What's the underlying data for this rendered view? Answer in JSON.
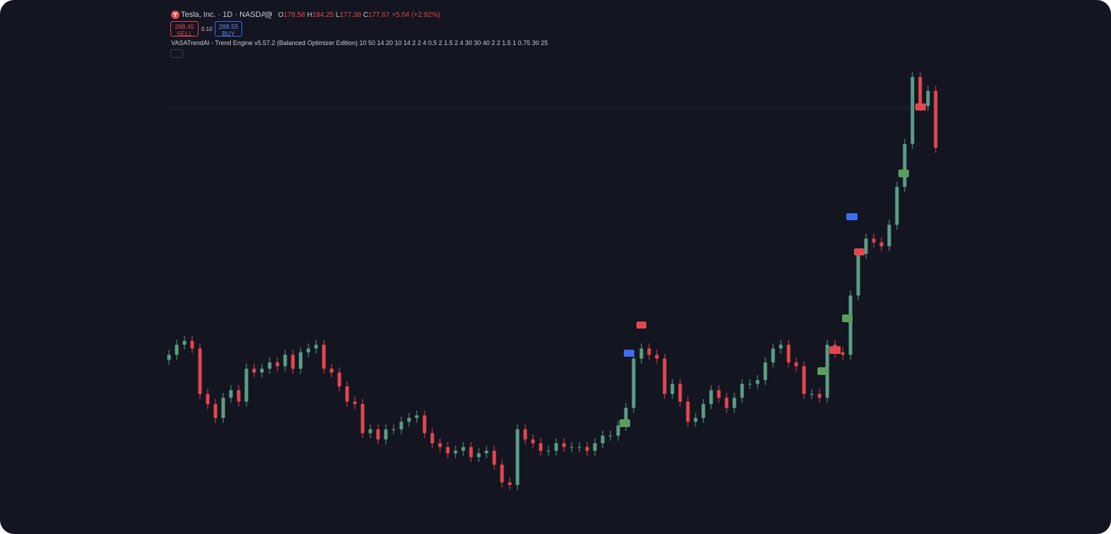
{
  "header": {
    "symbol": "Tesla, Inc. · 1D · NASDAQ",
    "ohlc": {
      "o_label": "O",
      "o": "178.58",
      "h_label": "H",
      "h": "184.25",
      "l_label": "L",
      "l": "177.38",
      "c_label": "C",
      "c": "177.67",
      "change": "+5.04 (+2.92%)"
    },
    "sell_price": "288.45",
    "sell_label": "SELL",
    "spread": "0.10",
    "buy_price": "288.55",
    "buy_label": "BUY",
    "indicator": "VASATrendAI - Trend Engine v5.57.2 (Balanced Optimizer Edition) 10 50 14 20 10 14 2 2 4 0.5 2 1.5 2 4 30 30 40 2 2 1.5 1 0.75 30 25"
  },
  "chart_data": {
    "type": "candlestick",
    "up_color": "#5a9e84",
    "down_color": "#e2474f",
    "open": [
      245,
      249,
      257,
      260,
      254,
      218,
      210,
      199,
      215,
      221,
      212,
      238,
      235,
      238,
      243,
      240,
      249,
      238,
      251,
      254,
      257,
      238,
      235,
      224,
      212,
      210,
      187,
      190,
      182,
      190,
      190,
      196,
      199,
      201,
      187,
      179,
      176,
      171,
      173,
      176,
      168,
      171,
      173,
      162,
      148,
      146,
      190,
      182,
      179,
      173,
      173,
      179,
      176,
      176,
      176,
      173,
      179,
      185,
      185,
      193,
      207,
      246,
      254,
      249,
      246,
      218,
      226,
      212,
      196,
      199,
      210,
      221,
      215,
      207,
      215,
      226,
      226,
      229,
      243,
      254,
      257,
      243,
      240,
      218,
      218,
      215,
      257,
      251,
      249,
      296,
      329,
      341,
      338,
      335,
      352,
      382,
      416,
      469,
      446,
      458
    ],
    "high": [
      253,
      261,
      264,
      264,
      258,
      222,
      214,
      219,
      225,
      225,
      242,
      242,
      242,
      247,
      247,
      253,
      253,
      255,
      258,
      261,
      261,
      242,
      239,
      228,
      216,
      214,
      194,
      194,
      194,
      194,
      200,
      203,
      205,
      205,
      191,
      183,
      180,
      177,
      180,
      180,
      175,
      177,
      177,
      166,
      152,
      194,
      194,
      186,
      183,
      177,
      183,
      183,
      180,
      180,
      180,
      183,
      189,
      189,
      197,
      211,
      250,
      258,
      258,
      253,
      250,
      230,
      230,
      216,
      203,
      214,
      225,
      225,
      219,
      219,
      230,
      230,
      233,
      247,
      258,
      261,
      261,
      247,
      244,
      222,
      222,
      261,
      261,
      255,
      300,
      333,
      345,
      345,
      342,
      356,
      386,
      420,
      473,
      473,
      462,
      462
    ],
    "low": [
      241,
      245,
      253,
      250,
      214,
      206,
      195,
      195,
      211,
      208,
      208,
      231,
      231,
      234,
      236,
      236,
      234,
      234,
      247,
      250,
      234,
      231,
      220,
      208,
      206,
      183,
      183,
      178,
      178,
      186,
      186,
      192,
      195,
      183,
      175,
      172,
      167,
      167,
      169,
      164,
      164,
      167,
      158,
      144,
      142,
      142,
      178,
      175,
      169,
      169,
      169,
      172,
      172,
      172,
      169,
      169,
      175,
      181,
      181,
      189,
      203,
      242,
      245,
      242,
      214,
      214,
      208,
      192,
      192,
      195,
      206,
      211,
      203,
      203,
      211,
      222,
      222,
      225,
      239,
      250,
      239,
      236,
      214,
      214,
      211,
      211,
      247,
      245,
      245,
      292,
      325,
      334,
      331,
      331,
      348,
      378,
      412,
      442,
      442,
      409
    ],
    "close": [
      249,
      257,
      260,
      254,
      218,
      210,
      199,
      215,
      221,
      212,
      238,
      235,
      238,
      243,
      240,
      249,
      238,
      251,
      254,
      257,
      238,
      235,
      224,
      212,
      210,
      187,
      190,
      182,
      190,
      190,
      196,
      199,
      201,
      187,
      179,
      176,
      171,
      173,
      176,
      168,
      171,
      173,
      162,
      148,
      146,
      190,
      182,
      179,
      173,
      173,
      179,
      176,
      176,
      176,
      173,
      179,
      185,
      185,
      193,
      207,
      246,
      254,
      249,
      246,
      218,
      226,
      212,
      196,
      199,
      210,
      221,
      215,
      207,
      215,
      226,
      226,
      229,
      243,
      254,
      257,
      243,
      240,
      218,
      218,
      215,
      257,
      251,
      249,
      296,
      329,
      341,
      338,
      335,
      352,
      382,
      416,
      469,
      446,
      458,
      413
    ]
  }
}
